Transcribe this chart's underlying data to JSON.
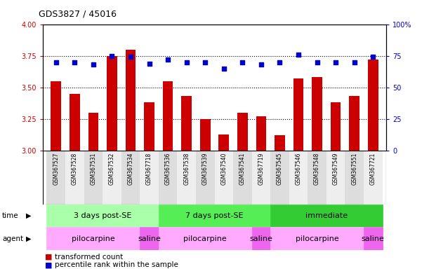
{
  "title": "GDS3827 / 45016",
  "samples": [
    "GSM367527",
    "GSM367528",
    "GSM367531",
    "GSM367532",
    "GSM367534",
    "GSM367718",
    "GSM367536",
    "GSM367538",
    "GSM367539",
    "GSM367540",
    "GSM367541",
    "GSM367719",
    "GSM367545",
    "GSM367546",
    "GSM367548",
    "GSM367549",
    "GSM367551",
    "GSM367721"
  ],
  "red_values": [
    3.55,
    3.45,
    3.3,
    3.75,
    3.8,
    3.38,
    3.55,
    3.43,
    3.25,
    3.13,
    3.3,
    3.27,
    3.12,
    3.57,
    3.58,
    3.38,
    3.43,
    3.72
  ],
  "blue_values": [
    70,
    70,
    68,
    75,
    74,
    69,
    72,
    70,
    70,
    65,
    70,
    68,
    70,
    76,
    70,
    70,
    70,
    74
  ],
  "ylim_left": [
    3.0,
    4.0
  ],
  "ylim_right": [
    0,
    100
  ],
  "yticks_left": [
    3.0,
    3.25,
    3.5,
    3.75,
    4.0
  ],
  "yticks_right": [
    0,
    25,
    50,
    75,
    100
  ],
  "ytick_labels_right": [
    "0",
    "25",
    "50",
    "75",
    "100%"
  ],
  "hlines": [
    3.25,
    3.5,
    3.75
  ],
  "time_groups": [
    {
      "label": "3 days post-SE",
      "start": 0,
      "end": 5,
      "color": "#aaffaa"
    },
    {
      "label": "7 days post-SE",
      "start": 6,
      "end": 11,
      "color": "#55ee55"
    },
    {
      "label": "immediate",
      "start": 12,
      "end": 17,
      "color": "#33cc33"
    }
  ],
  "agent_groups": [
    {
      "label": "pilocarpine",
      "start": 0,
      "end": 4,
      "color": "#ffaaff"
    },
    {
      "label": "saline",
      "start": 5,
      "end": 5,
      "color": "#ee66ee"
    },
    {
      "label": "pilocarpine",
      "start": 6,
      "end": 10,
      "color": "#ffaaff"
    },
    {
      "label": "saline",
      "start": 11,
      "end": 11,
      "color": "#ee66ee"
    },
    {
      "label": "pilocarpine",
      "start": 12,
      "end": 16,
      "color": "#ffaaff"
    },
    {
      "label": "saline",
      "start": 17,
      "end": 17,
      "color": "#ee66ee"
    }
  ],
  "bar_color": "#cc0000",
  "dot_color": "#0000cc",
  "bar_width": 0.55,
  "background_color": "#ffffff",
  "plot_bg_color": "#ffffff"
}
